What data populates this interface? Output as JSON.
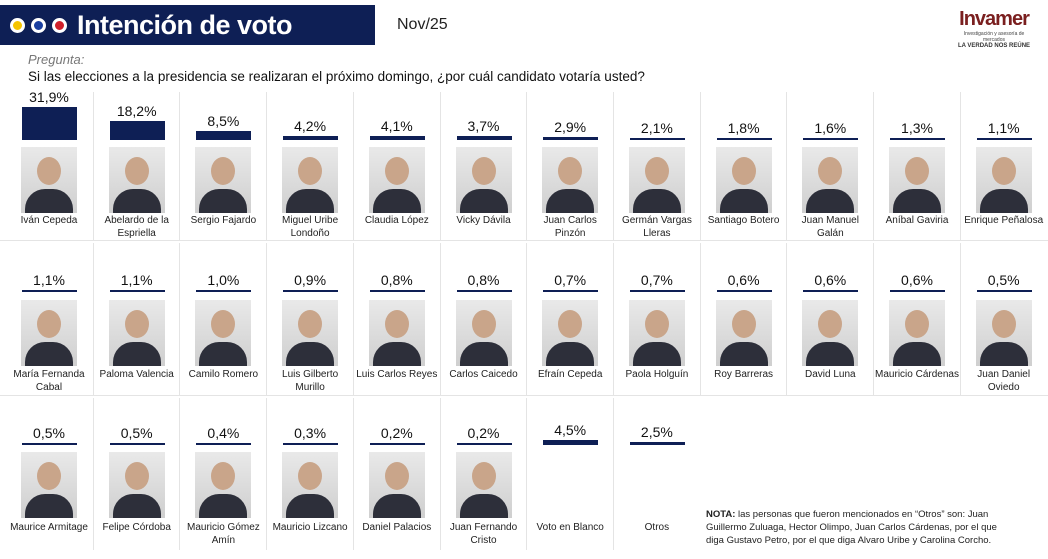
{
  "header": {
    "title": "Intención de voto",
    "date": "Nov/25",
    "dots": [
      "#f5c400",
      "#1a3fa0",
      "#d0202a"
    ],
    "logo": {
      "name": "Invamer",
      "tagline": "Investigación y asesoría de mercados",
      "slogan": "LA VERDAD NOS REÚNE"
    }
  },
  "question": {
    "label": "Pregunta:",
    "text": "Si las elecciones a la presidencia se realizaran el próximo domingo, ¿por cuál candidato votaría usted?"
  },
  "note": {
    "label": "NOTA:",
    "text": "las personas que fueron mencionados en “Otros” son: Juan Guillermo Zuluaga, Hector Olimpo, Juan Carlos Cárdenas, por el que diga Gustavo Petro, por el que diga Alvaro Uribe y Carolina Corcho."
  },
  "colors": {
    "bar": "#0e1f55"
  },
  "chart_data": {
    "type": "bar",
    "title": "Intención de voto",
    "unit": "%",
    "categories": [
      "Iván Cepeda",
      "Abelardo de la Espriella",
      "Sergio Fajardo",
      "Miguel Uribe Londoño",
      "Claudia López",
      "Vicky Dávila",
      "Juan Carlos Pinzón",
      "Germán Vargas Lleras",
      "Santiago Botero",
      "Juan Manuel Galán",
      "Aníbal Gaviria",
      "Enrique Peñalosa",
      "María Fernanda Cabal",
      "Paloma Valencia",
      "Camilo Romero",
      "Luis Gilberto Murillo",
      "Luis Carlos Reyes",
      "Carlos Caicedo",
      "Efraín Cepeda",
      "Paola Holguín",
      "Roy Barreras",
      "David Luna",
      "Mauricio Cárdenas",
      "Juan Daniel Oviedo",
      "Maurice Armitage",
      "Felipe Córdoba",
      "Mauricio Gómez Amín",
      "Mauricio Lizcano",
      "Daniel Palacios",
      "Juan Fernando Cristo",
      "Voto en Blanco",
      "Otros"
    ],
    "values": [
      31.9,
      18.2,
      8.5,
      4.2,
      4.1,
      3.7,
      2.9,
      2.1,
      1.8,
      1.6,
      1.3,
      1.1,
      1.1,
      1.1,
      1.0,
      0.9,
      0.8,
      0.8,
      0.7,
      0.7,
      0.6,
      0.6,
      0.6,
      0.5,
      0.5,
      0.5,
      0.4,
      0.3,
      0.2,
      0.2,
      4.5,
      2.5
    ],
    "labels": [
      "31,9%",
      "18,2%",
      "8,5%",
      "4,2%",
      "4,1%",
      "3,7%",
      "2,9%",
      "2,1%",
      "1,8%",
      "1,6%",
      "1,3%",
      "1,1%",
      "1,1%",
      "1,1%",
      "1,0%",
      "0,9%",
      "0,8%",
      "0,8%",
      "0,7%",
      "0,7%",
      "0,6%",
      "0,6%",
      "0,6%",
      "0,5%",
      "0,5%",
      "0,5%",
      "0,4%",
      "0,3%",
      "0,2%",
      "0,2%",
      "4,5%",
      "2,5%"
    ],
    "ylim": [
      0,
      35
    ]
  }
}
